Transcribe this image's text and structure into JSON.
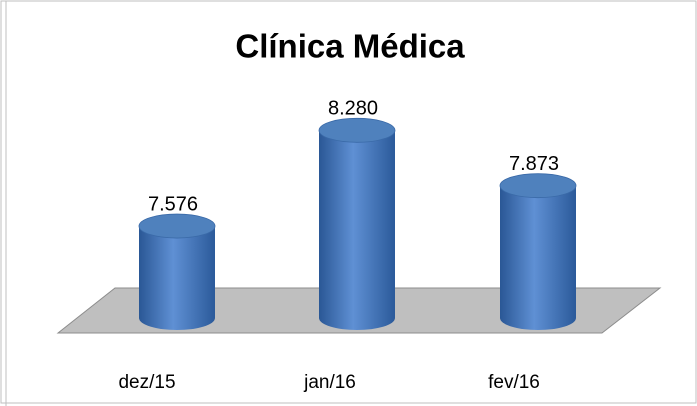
{
  "chart_data": {
    "type": "bar",
    "title": "Clínica Médica",
    "categories": [
      "dez/15",
      "jan/16",
      "fev/16"
    ],
    "values": [
      7576,
      8280,
      7873
    ],
    "value_labels": [
      "7.576",
      "8.280",
      "7.873"
    ],
    "color": "#4f81bd",
    "ylim": [
      6900,
      8400
    ]
  }
}
